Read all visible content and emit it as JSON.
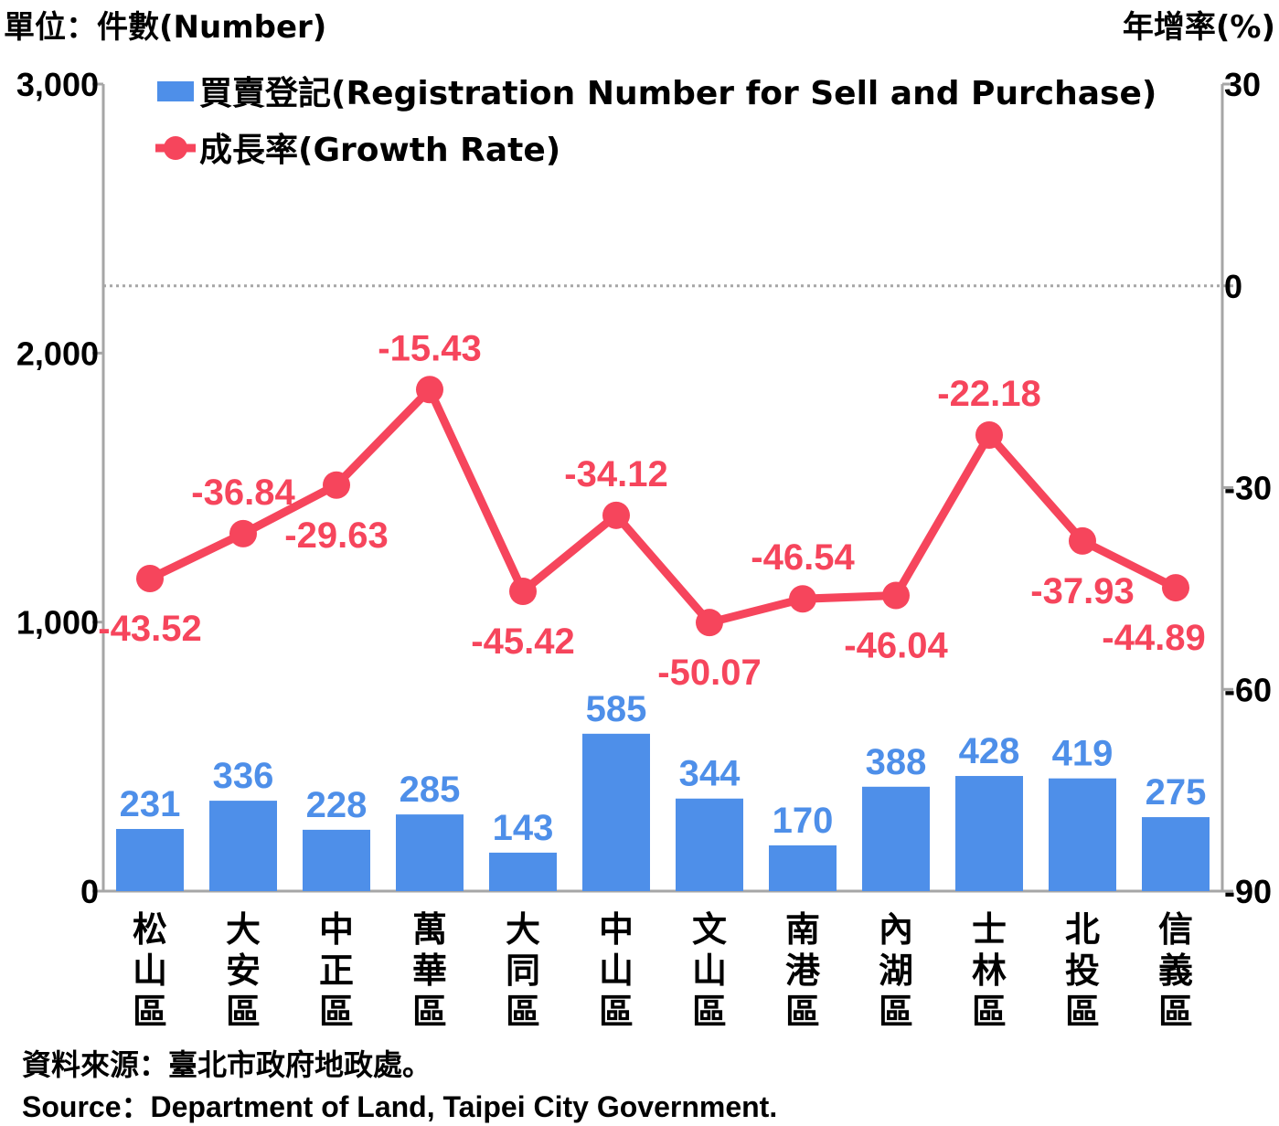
{
  "header": {
    "left_unit": "單位：件數(Number)",
    "right_unit": "年增率(%)"
  },
  "source": {
    "line1": "資料來源：臺北市政府地政處。",
    "line2": "Source：Department of Land, Taipei City Government."
  },
  "chart_data": {
    "type": "bar",
    "categories": [
      "松山區",
      "大安區",
      "中正區",
      "萬華區",
      "大同區",
      "中山區",
      "文山區",
      "南港區",
      "內湖區",
      "士林區",
      "北投區",
      "信義區"
    ],
    "series": [
      {
        "name": "買賣登記(Registration Number for Sell and Purchase)",
        "type": "bar",
        "axis": "left",
        "color": "#4e8fe9",
        "values": [
          231,
          336,
          228,
          285,
          143,
          585,
          344,
          170,
          388,
          428,
          419,
          275
        ]
      },
      {
        "name": "成長率(Growth Rate)",
        "type": "line",
        "axis": "right",
        "color": "#f6455c",
        "values": [
          -43.52,
          -36.84,
          -29.63,
          -15.43,
          -45.42,
          -34.12,
          -50.07,
          -46.54,
          -46.04,
          -22.18,
          -37.93,
          -44.89
        ]
      }
    ],
    "left_axis": {
      "range": [
        0,
        3000
      ],
      "ticks": [
        "0",
        "1,000",
        "2,000",
        "3,000"
      ]
    },
    "right_axis": {
      "range": [
        -90,
        30
      ],
      "ticks": [
        "-90",
        "-60",
        "-30",
        "0",
        "30"
      ]
    },
    "zero_reference_line": "dotted",
    "legend_position": "top-left",
    "grid": false
  }
}
